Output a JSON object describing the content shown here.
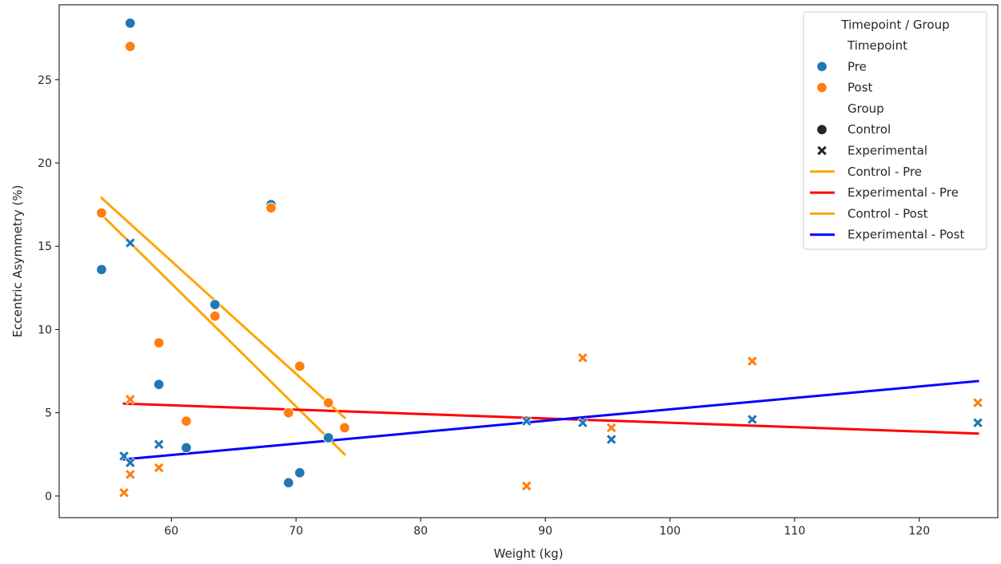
{
  "chart_data": {
    "type": "scatter",
    "title": "",
    "xlabel": "Weight (kg)",
    "ylabel": "Eccentric Asymmetry (%)",
    "xlim": [
      51,
      126.3
    ],
    "ylim": [
      -1.3,
      29.5
    ],
    "xticks": [
      60,
      70,
      80,
      90,
      100,
      110,
      120
    ],
    "yticks": [
      0,
      5,
      10,
      15,
      20,
      25
    ],
    "grid": false,
    "legend": {
      "position": "top-right",
      "title": "Timepoint / Group",
      "entries": [
        {
          "label": "Timepoint",
          "kind": "header"
        },
        {
          "label": "Pre",
          "kind": "color",
          "color": "#1f77b4"
        },
        {
          "label": "Post",
          "kind": "color",
          "color": "#ff7f0e"
        },
        {
          "label": "Group",
          "kind": "header"
        },
        {
          "label": "Control",
          "kind": "marker",
          "marker": "circle"
        },
        {
          "label": "Experimental",
          "kind": "marker",
          "marker": "x"
        },
        {
          "label": "Control - Pre",
          "kind": "line",
          "color": "#ffa500"
        },
        {
          "label": "Experimental - Pre",
          "kind": "line",
          "color": "#ff0000"
        },
        {
          "label": "Control - Post",
          "kind": "line",
          "color": "#ffa500"
        },
        {
          "label": "Experimental - Post",
          "kind": "line",
          "color": "#0000ff"
        }
      ]
    },
    "series": [
      {
        "name": "Pre",
        "group": "Control",
        "marker": "circle",
        "color": "#1f77b4",
        "points": [
          [
            56.7,
            28.4
          ],
          [
            54.4,
            13.6
          ],
          [
            68.0,
            17.5
          ],
          [
            63.5,
            11.5
          ],
          [
            59.0,
            6.7
          ],
          [
            61.2,
            2.9
          ],
          [
            72.6,
            3.5
          ],
          [
            69.4,
            0.8
          ],
          [
            70.3,
            1.4
          ]
        ]
      },
      {
        "name": "Post",
        "group": "Control",
        "marker": "circle",
        "color": "#ff7f0e",
        "points": [
          [
            56.7,
            27.0
          ],
          [
            54.4,
            17.0
          ],
          [
            68.0,
            17.3
          ],
          [
            63.5,
            10.8
          ],
          [
            59.0,
            9.2
          ],
          [
            61.2,
            4.5
          ],
          [
            72.6,
            5.6
          ],
          [
            69.4,
            5.0
          ],
          [
            70.3,
            7.8
          ],
          [
            73.9,
            4.1
          ]
        ]
      },
      {
        "name": "Pre",
        "group": "Experimental",
        "marker": "x",
        "color": "#1f77b4",
        "points": [
          [
            56.7,
            15.2
          ],
          [
            56.2,
            2.4
          ],
          [
            56.7,
            2.0
          ],
          [
            59.0,
            3.1
          ],
          [
            88.5,
            4.5
          ],
          [
            93.0,
            4.4
          ],
          [
            95.3,
            3.4
          ],
          [
            106.6,
            4.6
          ],
          [
            124.7,
            4.4
          ]
        ]
      },
      {
        "name": "Post",
        "group": "Experimental",
        "marker": "x",
        "color": "#ff7f0e",
        "points": [
          [
            56.7,
            5.8
          ],
          [
            56.7,
            1.3
          ],
          [
            56.2,
            0.2
          ],
          [
            59.0,
            1.7
          ],
          [
            88.5,
            0.6
          ],
          [
            93.0,
            8.3
          ],
          [
            95.3,
            4.1
          ],
          [
            106.6,
            8.1
          ],
          [
            124.7,
            5.6
          ]
        ]
      }
    ],
    "regression_lines": [
      {
        "name": "Control - Pre",
        "color": "#ffa500",
        "x": [
          54.4,
          73.9
        ],
        "y": [
          16.9,
          2.5
        ]
      },
      {
        "name": "Experimental - Pre",
        "color": "#ff0000",
        "x": [
          56.2,
          124.7
        ],
        "y": [
          5.55,
          3.75
        ]
      },
      {
        "name": "Control - Post",
        "color": "#ffa500",
        "x": [
          54.4,
          73.9
        ],
        "y": [
          17.9,
          4.7
        ]
      },
      {
        "name": "Experimental - Post",
        "color": "#0000ff",
        "x": [
          56.2,
          124.7
        ],
        "y": [
          2.2,
          6.9
        ]
      }
    ]
  }
}
